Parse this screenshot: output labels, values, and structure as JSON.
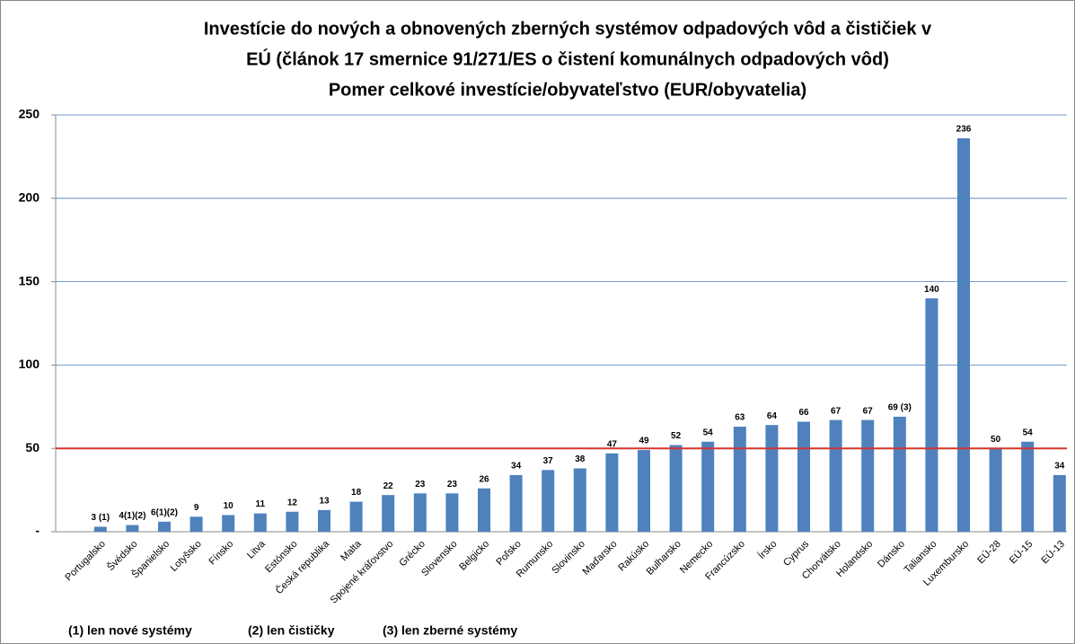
{
  "chart_data": {
    "type": "bar",
    "title": [
      "Investície do nových a obnovených zberných systémov odpadových vôd a čističiek v",
      "EÚ (článok 17 smernice 91/271/ES o čistení komunálnych odpadových vôd)",
      "Pomer celkové investície/obyvateľstvo (EUR/obyvatelia)"
    ],
    "categories": [
      "Portugalsko",
      "Švédsko",
      "Španielsko",
      "Lotyšsko",
      "Fínsko",
      "Litva",
      "Estónsko",
      "Česká republika",
      "Malta",
      "Spojené kráľovstvo",
      "Grécko",
      "Slovensko",
      "Belgicko",
      "Poľsko",
      "Rumunsko",
      "Slovinsko",
      "Maďarsko",
      "Rakúsko",
      "Bulharsko",
      "Nemecko",
      "Francúzsko",
      "Írsko",
      "Cyprus",
      "Chorvátsko",
      "Holandsko",
      "Dánsko",
      "Taliansko",
      "Luxembursko",
      "EÚ-28",
      "EÚ-15",
      "EÚ-13"
    ],
    "values": [
      3,
      4,
      6,
      9,
      10,
      11,
      12,
      13,
      18,
      22,
      23,
      23,
      26,
      34,
      37,
      38,
      47,
      49,
      52,
      54,
      63,
      64,
      66,
      67,
      67,
      69,
      140,
      236,
      50,
      54,
      34
    ],
    "value_labels": [
      "3 (1)",
      "4(1)(2)",
      "6(1)(2)",
      "9",
      "10",
      "11",
      "12",
      "13",
      "18",
      "22",
      "23",
      "23",
      "26",
      "34",
      "37",
      "38",
      "47",
      "49",
      "52",
      "54",
      "63",
      "64",
      "66",
      "67",
      "67",
      "69 (3)",
      "140",
      "236",
      "50",
      "54",
      "34"
    ],
    "color": "#4f81bd",
    "ylim": [
      0,
      250
    ],
    "yticks": [
      {
        "value": 0,
        "label": "-"
      },
      50,
      100,
      150,
      200,
      250
    ],
    "grid": true,
    "reference_line": {
      "value": 50,
      "color": "#d9342b"
    },
    "notes": [
      "(1) len nové systémy",
      "(2) len čističky",
      "(3) len zberné systémy"
    ]
  }
}
